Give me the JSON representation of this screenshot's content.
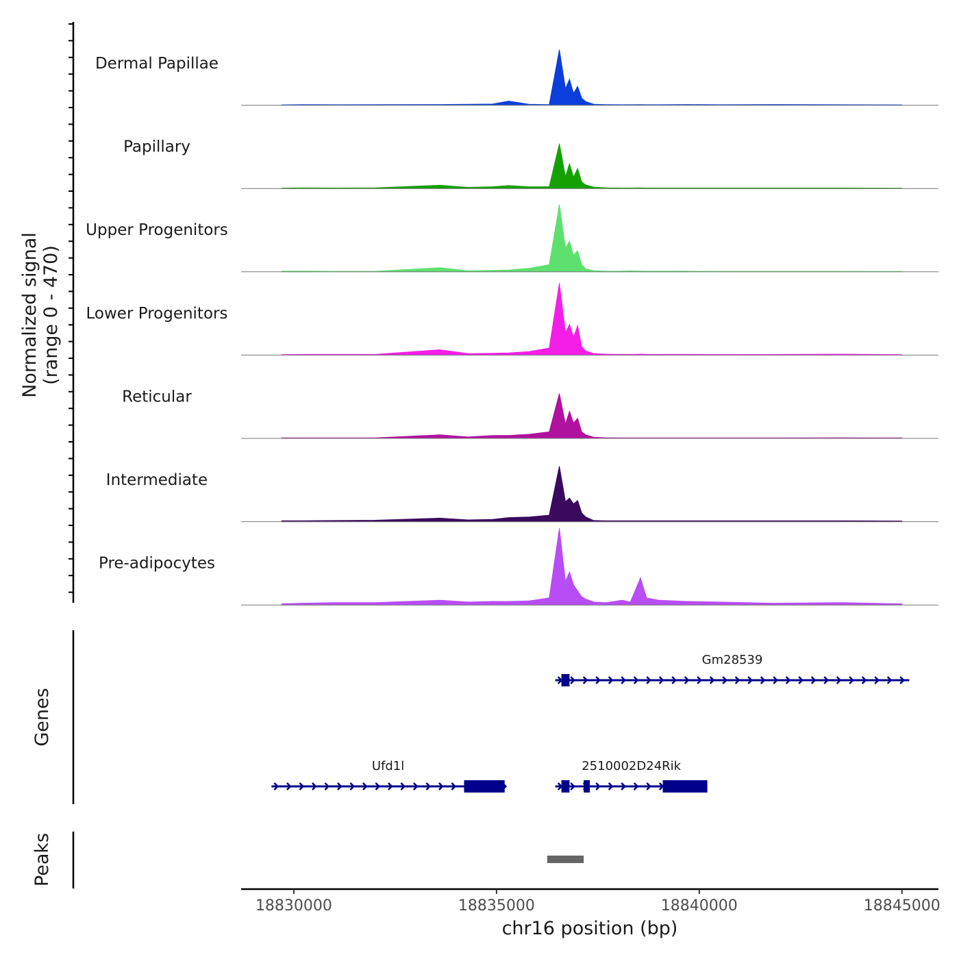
{
  "chart_data": {
    "type": "area",
    "title": "",
    "ylabel_line1": "Normalized signal",
    "ylabel_line2": "(range 0 - 470)",
    "ylim": [
      0,
      470
    ],
    "xlabel": "chr16 position (bp)",
    "xlim": [
      18828700,
      18845900
    ],
    "xticks": [
      18830000,
      18835000,
      18840000,
      18845000
    ],
    "xtick_labels": [
      "18830000",
      "18835000",
      "18840000",
      "18845000"
    ],
    "x": [
      18829700,
      18830200,
      18831000,
      18832000,
      18833600,
      18834300,
      18834900,
      18835300,
      18835800,
      18836300,
      18836550,
      18836700,
      18836800,
      18836900,
      18837000,
      18837100,
      18837200,
      18837400,
      18837700,
      18838100,
      18838300,
      18838550,
      18838700,
      18839000,
      18839700,
      18840500,
      18841800,
      18843500,
      18845000
    ],
    "series": [
      {
        "name": "Dermal Papillae",
        "color": "#0C3EDB",
        "values": [
          3,
          5,
          4,
          5,
          6,
          8,
          10,
          35,
          8,
          5,
          470,
          140,
          220,
          100,
          160,
          60,
          30,
          8,
          5,
          4,
          4,
          5,
          4,
          4,
          6,
          4,
          6,
          4,
          3
        ]
      },
      {
        "name": "Papillary",
        "color": "#14A100",
        "values": [
          3,
          6,
          4,
          5,
          28,
          10,
          15,
          25,
          15,
          15,
          380,
          100,
          210,
          95,
          170,
          55,
          30,
          12,
          5,
          4,
          4,
          5,
          4,
          4,
          4,
          4,
          4,
          4,
          3
        ]
      },
      {
        "name": "Upper Progenitors",
        "color": "#5EE06F",
        "values": [
          5,
          6,
          4,
          4,
          35,
          8,
          12,
          15,
          30,
          60,
          570,
          200,
          260,
          140,
          180,
          60,
          25,
          10,
          5,
          6,
          8,
          6,
          5,
          6,
          5,
          4,
          4,
          4,
          3
        ]
      },
      {
        "name": "Lower Progenitors",
        "color": "#F51DE8",
        "values": [
          4,
          6,
          6,
          6,
          45,
          12,
          15,
          18,
          30,
          60,
          610,
          190,
          260,
          150,
          250,
          70,
          35,
          12,
          8,
          6,
          6,
          8,
          6,
          6,
          6,
          5,
          5,
          8,
          4
        ]
      },
      {
        "name": "Reticular",
        "color": "#B0119E",
        "values": [
          4,
          4,
          4,
          4,
          30,
          12,
          25,
          25,
          35,
          55,
          380,
          120,
          230,
          130,
          170,
          55,
          30,
          10,
          5,
          4,
          4,
          4,
          4,
          4,
          4,
          4,
          4,
          5,
          4
        ]
      },
      {
        "name": "Intermediate",
        "color": "#3A0A5E",
        "values": [
          8,
          8,
          10,
          12,
          30,
          15,
          20,
          35,
          40,
          55,
          470,
          170,
          200,
          150,
          180,
          75,
          40,
          10,
          8,
          8,
          8,
          8,
          8,
          8,
          8,
          8,
          8,
          8,
          6
        ]
      },
      {
        "name": "Pre-adipocytes",
        "color": "#B84CF5",
        "values": [
          10,
          15,
          20,
          20,
          40,
          25,
          30,
          30,
          35,
          60,
          650,
          200,
          280,
          170,
          120,
          70,
          50,
          25,
          20,
          40,
          25,
          230,
          60,
          40,
          30,
          25,
          15,
          20,
          10
        ]
      }
    ],
    "genes_label": "Genes",
    "genes": [
      {
        "name": "Gm28539",
        "start": 18836450,
        "end": 18845180,
        "strand": "+",
        "row": 0,
        "exons": [
          [
            18836600,
            18836800
          ]
        ]
      },
      {
        "name": "Ufd1l",
        "start": 18829450,
        "end": 18835200,
        "strand": "+",
        "row": 1,
        "exons": [
          [
            18834200,
            18835200
          ]
        ]
      },
      {
        "name": "2510002D24Rik",
        "start": 18836450,
        "end": 18840200,
        "strand": "+",
        "row": 1,
        "exons": [
          [
            18836600,
            18836800
          ],
          [
            18837150,
            18837300
          ],
          [
            18839100,
            18840200
          ]
        ]
      }
    ],
    "peaks_label": "Peaks",
    "peaks": [
      [
        18836250,
        18837150
      ]
    ]
  }
}
